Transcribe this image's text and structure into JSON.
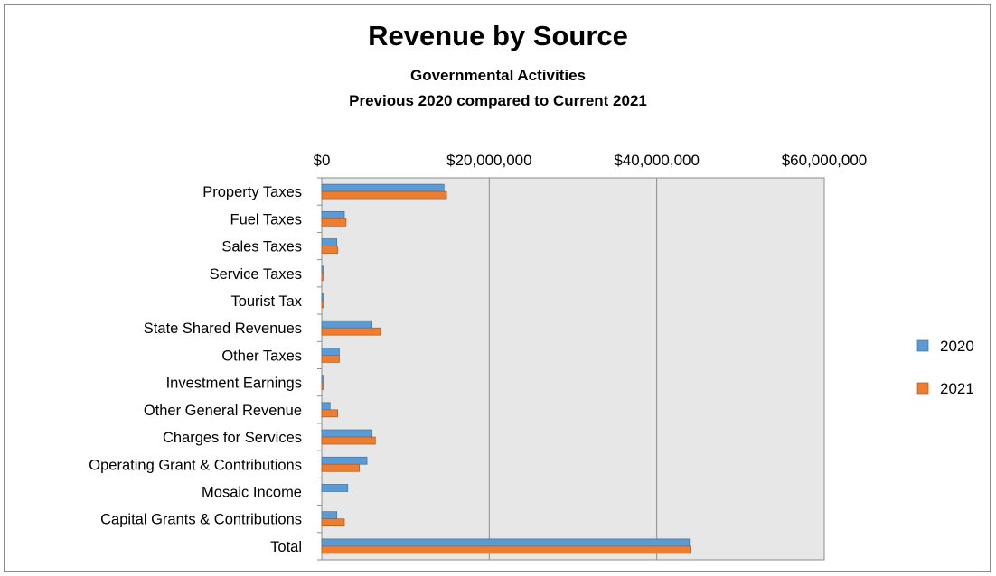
{
  "chart_data": {
    "type": "bar",
    "orientation": "horizontal",
    "title": "Revenue by Source",
    "subtitle_1": "Governmental Activities",
    "subtitle_2": "Previous 2020 compared to Current 2021",
    "categories": [
      "Property Taxes",
      "Fuel Taxes",
      "Sales Taxes",
      "Service Taxes",
      "Tourist Tax",
      "State Shared Revenues",
      "Other Taxes",
      "Investment Earnings",
      "Other General Revenue",
      "Charges for Services",
      "Operating Grant & Contributions",
      "Mosaic Income",
      "Capital Grants & Contributions",
      "Total"
    ],
    "series": [
      {
        "name": "2020",
        "color": "#5b9bd5",
        "values": [
          14600000,
          2700000,
          1800000,
          150000,
          100000,
          6000000,
          2100000,
          80000,
          1000000,
          6000000,
          5400000,
          3100000,
          1800000,
          43900000
        ]
      },
      {
        "name": "2021",
        "color": "#ed7d31",
        "values": [
          14900000,
          2900000,
          1900000,
          150000,
          100000,
          7000000,
          2100000,
          80000,
          1900000,
          6400000,
          4500000,
          0,
          2700000,
          44000000
        ]
      }
    ],
    "xlim": [
      0,
      60000000
    ],
    "ticks": [
      0,
      20000000,
      40000000,
      60000000
    ],
    "tick_labels": [
      "$0",
      "$20,000,000",
      "$40,000,000",
      "$60,000,000"
    ],
    "axis_position": "top",
    "grid": true,
    "legend_position": "right",
    "plot_background": "#e7e7e7"
  }
}
